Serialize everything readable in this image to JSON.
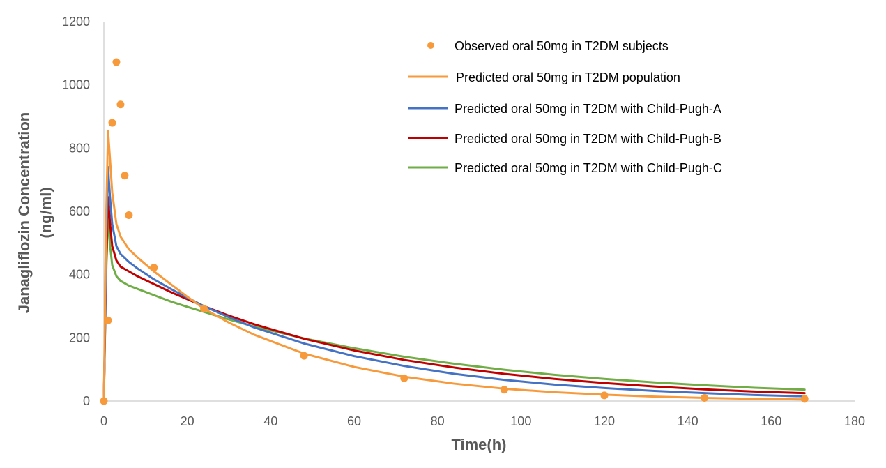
{
  "chart_data": {
    "type": "line",
    "title": "",
    "xlabel": "Time(h)",
    "ylabel_line1": "Janagliflozin Concentration",
    "ylabel_line2": "(ng/ml)",
    "xlim": [
      0,
      180
    ],
    "ylim": [
      0,
      1200
    ],
    "xticks": [
      0,
      20,
      40,
      60,
      80,
      100,
      120,
      140,
      160,
      180
    ],
    "yticks": [
      0,
      200,
      400,
      600,
      800,
      1000,
      1200
    ],
    "grid": false,
    "legend_position": "top-right",
    "observed": {
      "name": "Observed oral 50mg in T2DM subjects",
      "color": "#F79A3B",
      "points": [
        {
          "x": 0,
          "y": 0
        },
        {
          "x": 1,
          "y": 255
        },
        {
          "x": 2,
          "y": 880
        },
        {
          "x": 3,
          "y": 1072
        },
        {
          "x": 4,
          "y": 938
        },
        {
          "x": 5,
          "y": 713
        },
        {
          "x": 6,
          "y": 588
        },
        {
          "x": 12,
          "y": 422
        },
        {
          "x": 24,
          "y": 292
        },
        {
          "x": 48,
          "y": 143
        },
        {
          "x": 72,
          "y": 72
        },
        {
          "x": 96,
          "y": 36
        },
        {
          "x": 120,
          "y": 18
        },
        {
          "x": 144,
          "y": 10
        },
        {
          "x": 168,
          "y": 7
        }
      ]
    },
    "series": [
      {
        "name": "Predicted oral 50mg in T2DM population",
        "color": "#F79A3B",
        "x": [
          0,
          0.5,
          1,
          1.5,
          2,
          3,
          4,
          6,
          8,
          12,
          16,
          20,
          24,
          30,
          36,
          48,
          60,
          72,
          84,
          96,
          108,
          120,
          132,
          144,
          156,
          168
        ],
        "y": [
          0,
          550,
          855,
          760,
          660,
          560,
          520,
          480,
          455,
          410,
          370,
          330,
          292,
          248,
          210,
          150,
          108,
          77,
          55,
          39,
          28,
          20,
          14,
          10,
          7,
          5
        ]
      },
      {
        "name": "Predicted oral 50mg in T2DM with Child-Pugh-A",
        "color": "#4472C4",
        "x": [
          0,
          0.5,
          1,
          1.5,
          2,
          3,
          4,
          6,
          8,
          12,
          16,
          20,
          24,
          30,
          36,
          48,
          60,
          72,
          84,
          96,
          108,
          120,
          132,
          144,
          156,
          168
        ],
        "y": [
          0,
          450,
          740,
          640,
          560,
          490,
          465,
          440,
          420,
          385,
          355,
          327,
          300,
          265,
          233,
          182,
          142,
          111,
          86,
          67,
          52,
          41,
          32,
          25,
          19,
          15
        ]
      },
      {
        "name": "Predicted oral 50mg in T2DM with Child-Pugh-B",
        "color": "#C00000",
        "x": [
          0,
          0.5,
          1,
          1.5,
          2,
          3,
          4,
          6,
          8,
          12,
          16,
          20,
          24,
          30,
          36,
          48,
          60,
          72,
          84,
          96,
          108,
          120,
          132,
          144,
          156,
          168
        ],
        "y": [
          0,
          400,
          645,
          560,
          490,
          445,
          425,
          410,
          395,
          370,
          345,
          322,
          300,
          270,
          243,
          197,
          160,
          130,
          106,
          86,
          70,
          57,
          46,
          37,
          30,
          25
        ]
      },
      {
        "name": "Predicted oral 50mg in T2DM with Child-Pugh-C",
        "color": "#70AD47",
        "x": [
          0,
          0.5,
          1,
          1.5,
          2,
          3,
          4,
          6,
          8,
          12,
          16,
          20,
          24,
          30,
          36,
          48,
          60,
          72,
          84,
          96,
          108,
          120,
          132,
          144,
          156,
          168
        ],
        "y": [
          0,
          380,
          590,
          490,
          430,
          395,
          380,
          365,
          355,
          335,
          315,
          298,
          282,
          258,
          236,
          198,
          167,
          140,
          118,
          99,
          83,
          70,
          59,
          50,
          42,
          36
        ]
      }
    ]
  }
}
